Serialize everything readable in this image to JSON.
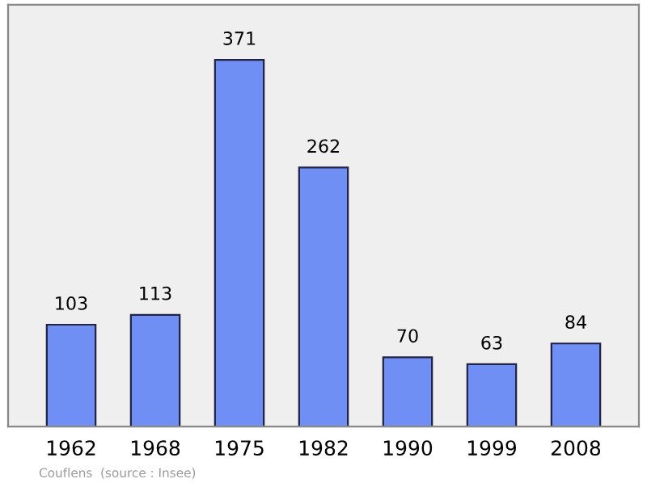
{
  "chart_data": {
    "type": "bar",
    "categories": [
      "1962",
      "1968",
      "1975",
      "1982",
      "1990",
      "1999",
      "2008"
    ],
    "values": [
      103,
      113,
      371,
      262,
      70,
      63,
      84
    ],
    "color": "#6f8ff5",
    "data_labels": true,
    "grid": false,
    "legend": false,
    "annotations": [
      "Couflens",
      "(source : Insee)"
    ]
  }
}
